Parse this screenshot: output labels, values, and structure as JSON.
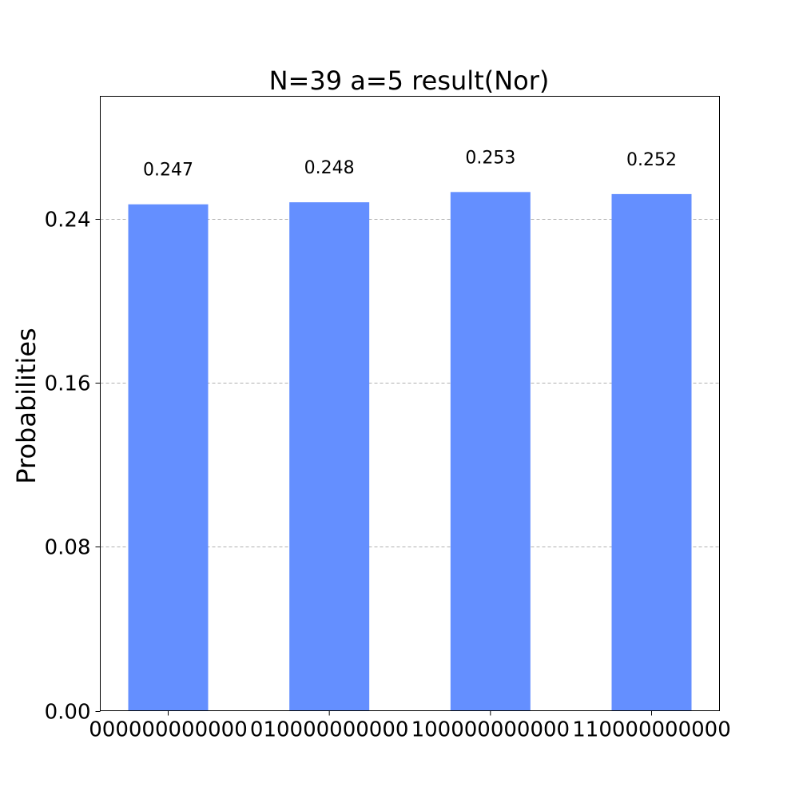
{
  "chart_data": {
    "type": "bar",
    "title": "N=39 a=5 result(Nor)",
    "xlabel": "",
    "ylabel": "Probabilities",
    "categories": [
      "000000000000",
      "010000000000",
      "100000000000",
      "110000000000"
    ],
    "values": [
      0.247,
      0.248,
      0.253,
      0.252
    ],
    "value_labels": [
      "0.247",
      "0.248",
      "0.253",
      "0.252"
    ],
    "ylim": [
      0,
      0.2997
    ],
    "yticks": [
      0.0,
      0.08,
      0.16,
      0.24
    ],
    "ytick_labels": [
      "0.00",
      "0.08",
      "0.16",
      "0.24"
    ],
    "grid": true,
    "bar_color": "#648fff"
  }
}
